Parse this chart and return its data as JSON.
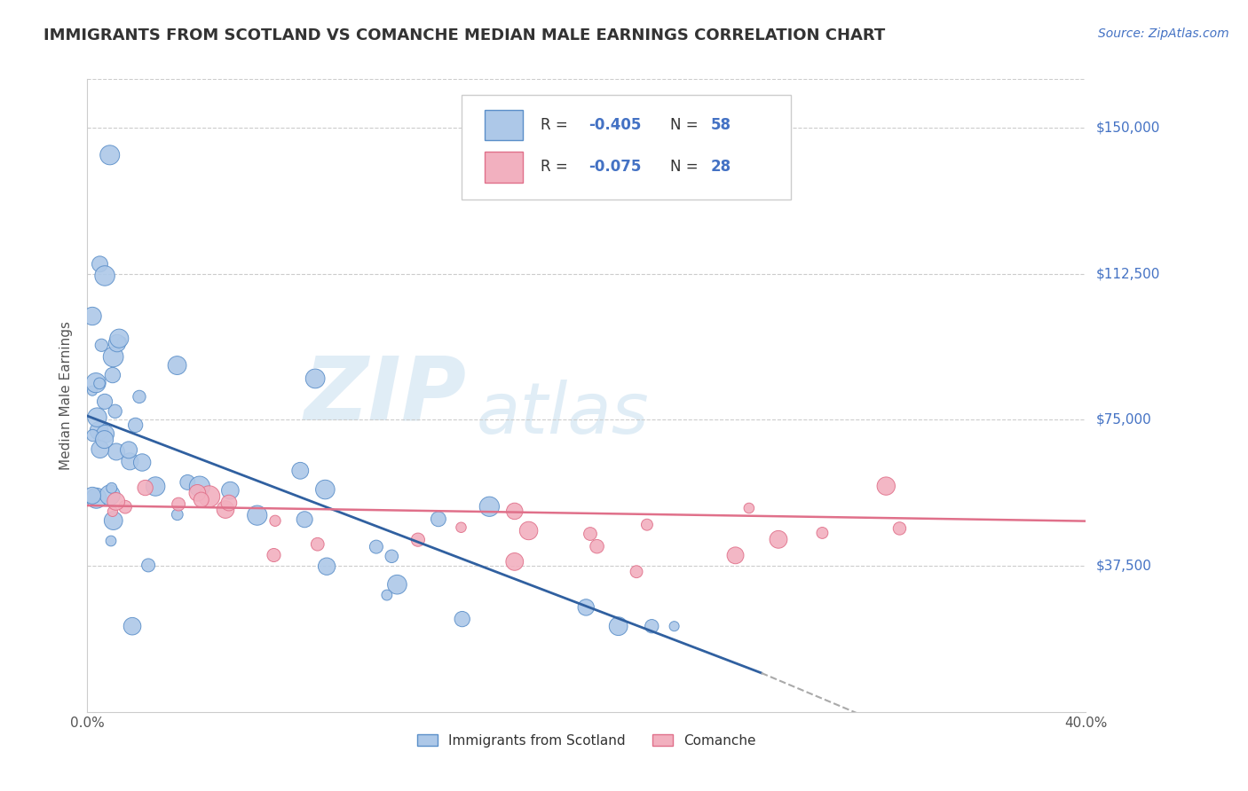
{
  "title": "IMMIGRANTS FROM SCOTLAND VS COMANCHE MEDIAN MALE EARNINGS CORRELATION CHART",
  "source": "Source: ZipAtlas.com",
  "ylabel": "Median Male Earnings",
  "y_ticks": [
    0,
    37500,
    75000,
    112500,
    150000
  ],
  "y_tick_labels": [
    "",
    "$37,500",
    "$75,000",
    "$112,500",
    "$150,000"
  ],
  "xlim": [
    0.0,
    0.4
  ],
  "ylim": [
    0,
    162500
  ],
  "watermark_zip": "ZIP",
  "watermark_atlas": "atlas",
  "blue_color": "#5b8fc9",
  "blue_fill": "#adc8e8",
  "pink_color": "#e0708a",
  "pink_fill": "#f2b0bf",
  "trend_blue_color": "#3060a0",
  "trend_pink_color": "#e0708a",
  "grid_color": "#cccccc",
  "bg_color": "#ffffff",
  "title_color": "#333333",
  "right_label_color": "#4472c4",
  "source_color": "#4472c4",
  "legend_r1": "-0.405",
  "legend_n1": "58",
  "legend_r2": "-0.075",
  "legend_n2": "28",
  "legend_text_color": "#4472c4",
  "legend_label_color": "#333333"
}
